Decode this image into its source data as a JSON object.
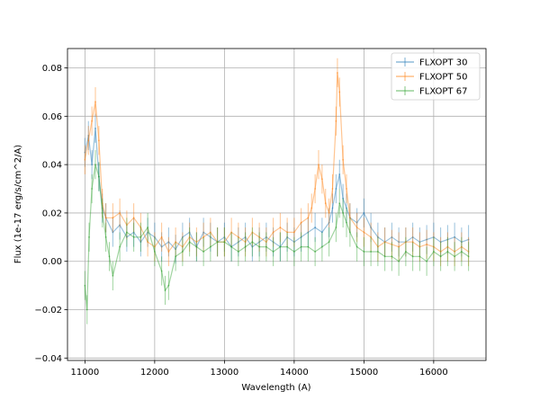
{
  "chart_data": {
    "type": "line",
    "title": "",
    "xlabel": "Wavelength (A)",
    "ylabel": "Flux (1e-17 erg/s/cm^2/A)",
    "xlim": [
      10750,
      16750
    ],
    "ylim": [
      -0.041,
      0.088
    ],
    "xticks": [
      11000,
      12000,
      13000,
      14000,
      15000,
      16000
    ],
    "yticks": [
      -0.04,
      -0.02,
      0.0,
      0.02,
      0.04,
      0.06,
      0.08
    ],
    "xtick_labels": [
      "11000",
      "12000",
      "13000",
      "14000",
      "15000",
      "16000"
    ],
    "ytick_labels": [
      "−0.04",
      "−0.02",
      "0.00",
      "0.02",
      "0.04",
      "0.06",
      "0.08"
    ],
    "grid": true,
    "legend_position": "top-right",
    "series": [
      {
        "name": "FLXOPT 30",
        "color": "#1f77b4",
        "x": [
          11000,
          11050,
          11100,
          11150,
          11200,
          11250,
          11300,
          11400,
          11500,
          11600,
          11700,
          11800,
          11900,
          12000,
          12100,
          12200,
          12300,
          12400,
          12500,
          12600,
          12700,
          12800,
          12900,
          13000,
          13100,
          13200,
          13300,
          13400,
          13500,
          13600,
          13700,
          13800,
          13900,
          14000,
          14100,
          14200,
          14300,
          14400,
          14500,
          14550,
          14600,
          14650,
          14700,
          14750,
          14800,
          14900,
          15000,
          15100,
          15200,
          15300,
          15400,
          15500,
          15600,
          15700,
          15800,
          15900,
          16000,
          16100,
          16200,
          16300,
          16400,
          16500
        ],
        "y": [
          0.045,
          0.052,
          0.04,
          0.055,
          0.035,
          0.022,
          0.018,
          0.012,
          0.015,
          0.01,
          0.012,
          0.008,
          0.012,
          0.01,
          0.006,
          0.008,
          0.005,
          0.01,
          0.012,
          0.006,
          0.012,
          0.01,
          0.008,
          0.01,
          0.006,
          0.008,
          0.01,
          0.006,
          0.008,
          0.01,
          0.008,
          0.006,
          0.01,
          0.008,
          0.01,
          0.012,
          0.014,
          0.012,
          0.016,
          0.022,
          0.03,
          0.036,
          0.026,
          0.022,
          0.018,
          0.016,
          0.02,
          0.014,
          0.01,
          0.008,
          0.01,
          0.008,
          0.008,
          0.01,
          0.008,
          0.009,
          0.01,
          0.008,
          0.009,
          0.01,
          0.008,
          0.009
        ],
        "err": 0.006
      },
      {
        "name": "FLXOPT 50",
        "color": "#ff7f0e",
        "x": [
          11000,
          11050,
          11100,
          11150,
          11200,
          11250,
          11300,
          11400,
          11500,
          11600,
          11700,
          11800,
          11900,
          12000,
          12100,
          12200,
          12300,
          12400,
          12500,
          12600,
          12700,
          12800,
          12900,
          13000,
          13100,
          13200,
          13300,
          13400,
          13500,
          13600,
          13700,
          13800,
          13900,
          14000,
          14100,
          14200,
          14250,
          14300,
          14350,
          14400,
          14450,
          14500,
          14550,
          14600,
          14620,
          14650,
          14700,
          14750,
          14800,
          14900,
          15000,
          15100,
          15200,
          15300,
          15400,
          15500,
          15600,
          15700,
          15800,
          15900,
          16000,
          16100,
          16200,
          16300,
          16400,
          16500
        ],
        "y": [
          0.042,
          0.05,
          0.058,
          0.066,
          0.05,
          0.024,
          0.018,
          0.018,
          0.02,
          0.015,
          0.018,
          0.014,
          0.008,
          0.006,
          0.01,
          0.004,
          0.008,
          0.006,
          0.01,
          0.008,
          0.01,
          0.012,
          0.008,
          0.008,
          0.012,
          0.01,
          0.008,
          0.012,
          0.01,
          0.008,
          0.012,
          0.014,
          0.012,
          0.012,
          0.016,
          0.018,
          0.022,
          0.03,
          0.04,
          0.034,
          0.024,
          0.02,
          0.03,
          0.058,
          0.078,
          0.07,
          0.042,
          0.03,
          0.018,
          0.014,
          0.012,
          0.01,
          0.006,
          0.008,
          0.007,
          0.006,
          0.008,
          0.008,
          0.006,
          0.007,
          0.006,
          0.004,
          0.006,
          0.004,
          0.006,
          0.004
        ],
        "err": 0.006
      },
      {
        "name": "FLXOPT 67",
        "color": "#2ca02c",
        "x": [
          11000,
          11030,
          11060,
          11100,
          11150,
          11200,
          11250,
          11300,
          11350,
          11400,
          11500,
          11600,
          11700,
          11800,
          11900,
          12000,
          12100,
          12150,
          12200,
          12300,
          12400,
          12500,
          12600,
          12700,
          12800,
          12900,
          13000,
          13100,
          13200,
          13300,
          13400,
          13500,
          13600,
          13700,
          13800,
          13900,
          14000,
          14100,
          14200,
          14300,
          14400,
          14500,
          14600,
          14650,
          14700,
          14750,
          14800,
          14900,
          15000,
          15100,
          15200,
          15300,
          15400,
          15500,
          15600,
          15700,
          15800,
          15900,
          16000,
          16100,
          16200,
          16300,
          16400,
          16500
        ],
        "y": [
          -0.01,
          -0.02,
          0.01,
          0.03,
          0.04,
          0.035,
          0.02,
          0.01,
          0.002,
          -0.006,
          0.006,
          0.012,
          0.01,
          0.01,
          0.014,
          0.004,
          -0.004,
          -0.012,
          -0.01,
          0.002,
          0.004,
          0.008,
          0.006,
          0.004,
          0.006,
          0.008,
          0.008,
          0.006,
          0.004,
          0.006,
          0.008,
          0.006,
          0.006,
          0.004,
          0.006,
          0.006,
          0.004,
          0.006,
          0.006,
          0.004,
          0.006,
          0.008,
          0.014,
          0.024,
          0.02,
          0.016,
          0.012,
          0.006,
          0.004,
          0.004,
          0.004,
          0.002,
          0.002,
          0.0,
          0.004,
          0.002,
          0.002,
          0.0,
          0.004,
          0.002,
          0.004,
          0.002,
          0.004,
          0.002
        ],
        "err": 0.006
      }
    ]
  }
}
